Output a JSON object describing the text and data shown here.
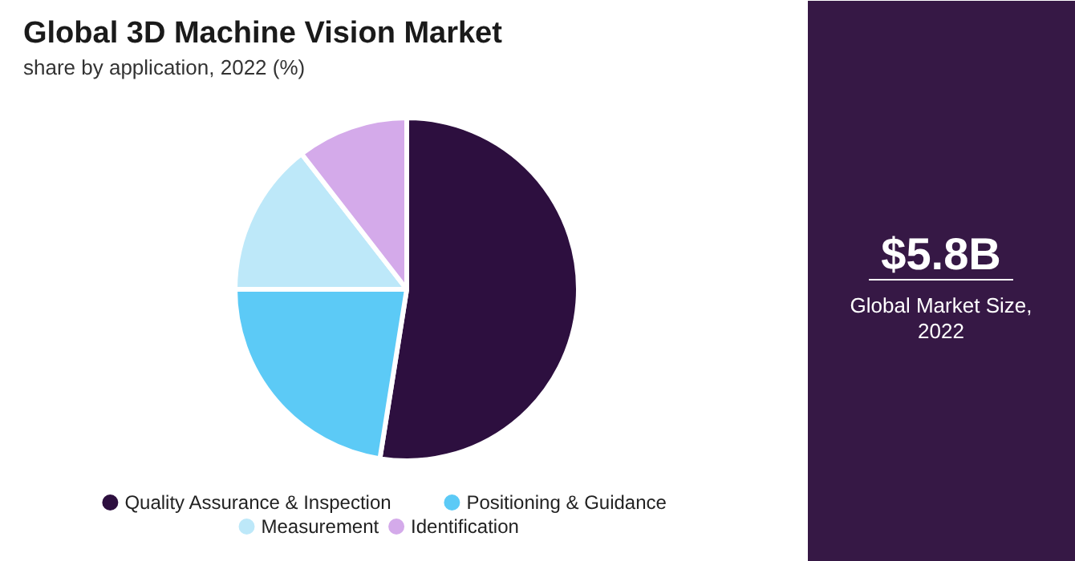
{
  "chart_data": [
    {
      "type": "pie",
      "title": "Global 3D Machine Vision Market",
      "subtitle": "share by application, 2022 (%)",
      "categories": [
        "Quality Assurance & Inspection",
        "Positioning & Guidance",
        "Measurement",
        "Identification"
      ],
      "values": [
        52.5,
        22.5,
        14.5,
        10.5
      ],
      "colors": [
        "#2d0f3f",
        "#5ccaf6",
        "#bde8f9",
        "#d4aaea"
      ],
      "legend": "bottom"
    },
    {
      "type": "other",
      "title": "$5.8B",
      "subtitle": "Global Market Size, 2022"
    }
  ]
}
